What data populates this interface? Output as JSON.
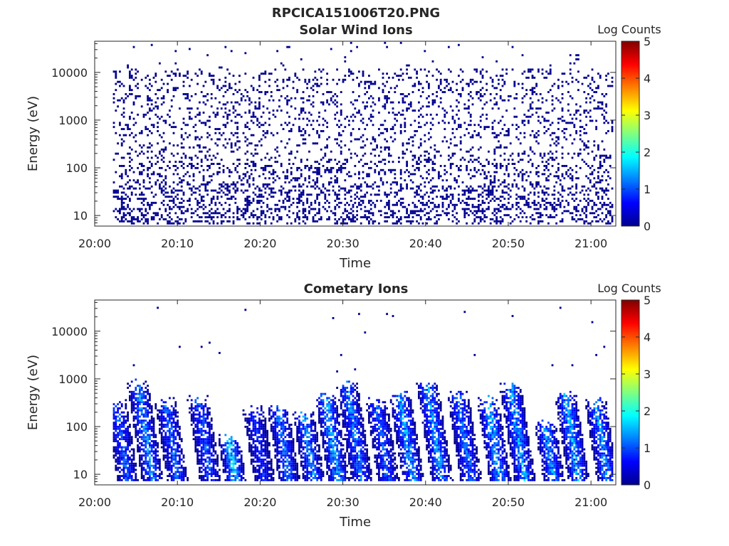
{
  "figure_title": "RPCICA151006T20.PNG",
  "chart_data": [
    {
      "type": "heatmap",
      "title": "Solar Wind Ions",
      "xlabel": "Time",
      "ylabel": "Energy (eV)",
      "colorbar_label": "Log Counts",
      "x_ticks": [
        "20:00",
        "20:10",
        "20:20",
        "20:30",
        "20:40",
        "20:50",
        "21:00"
      ],
      "y_ticks": [
        "10",
        "100",
        "1000",
        "10000"
      ],
      "y_scale": "log",
      "x_range_minutes": [
        0,
        63
      ],
      "colorbar_range": [
        0,
        5
      ],
      "colorbar_ticks": [
        "0",
        "1",
        "2",
        "3",
        "4",
        "5"
      ],
      "data_start_minute": 2.2,
      "description_level": "sparse low counts (0–0.5 log) scattered across 10–30000 eV for entire interval"
    },
    {
      "type": "heatmap",
      "title": "Cometary Ions",
      "xlabel": "Time",
      "ylabel": "Energy (eV)",
      "colorbar_label": "Log Counts",
      "x_ticks": [
        "20:00",
        "20:10",
        "20:20",
        "20:30",
        "20:40",
        "20:50",
        "21:00"
      ],
      "y_ticks": [
        "10",
        "100",
        "1000",
        "10000"
      ],
      "y_scale": "log",
      "x_range_minutes": [
        0,
        63
      ],
      "colorbar_range": [
        0,
        5
      ],
      "colorbar_ticks": [
        "0",
        "1",
        "2",
        "3",
        "4",
        "5"
      ],
      "bursts": [
        {
          "t": 3.5,
          "e_top": 300,
          "peak": 1.2
        },
        {
          "t": 6.5,
          "e_top": 700,
          "peak": 1.5
        },
        {
          "t": 9.5,
          "e_top": 300,
          "peak": 1.3
        },
        {
          "t": 13.5,
          "e_top": 300,
          "peak": 1.2
        },
        {
          "t": 16.5,
          "e_top": 50,
          "peak": 1.9
        },
        {
          "t": 20.0,
          "e_top": 200,
          "peak": 0.9
        },
        {
          "t": 23.0,
          "e_top": 200,
          "peak": 1.4
        },
        {
          "t": 26.0,
          "e_top": 150,
          "peak": 1.5
        },
        {
          "t": 29.0,
          "e_top": 400,
          "peak": 1.7
        },
        {
          "t": 31.8,
          "e_top": 700,
          "peak": 1.4
        },
        {
          "t": 35.0,
          "e_top": 300,
          "peak": 1.2
        },
        {
          "t": 38.0,
          "e_top": 400,
          "peak": 1.6
        },
        {
          "t": 41.5,
          "e_top": 600,
          "peak": 1.5
        },
        {
          "t": 45.0,
          "e_top": 400,
          "peak": 1.3
        },
        {
          "t": 48.5,
          "e_top": 300,
          "peak": 1.7
        },
        {
          "t": 51.5,
          "e_top": 600,
          "peak": 1.6
        },
        {
          "t": 55.0,
          "e_top": 100,
          "peak": 1.5
        },
        {
          "t": 58.0,
          "e_top": 400,
          "peak": 1.6
        },
        {
          "t": 61.5,
          "e_top": 300,
          "peak": 1.5
        }
      ]
    }
  ]
}
